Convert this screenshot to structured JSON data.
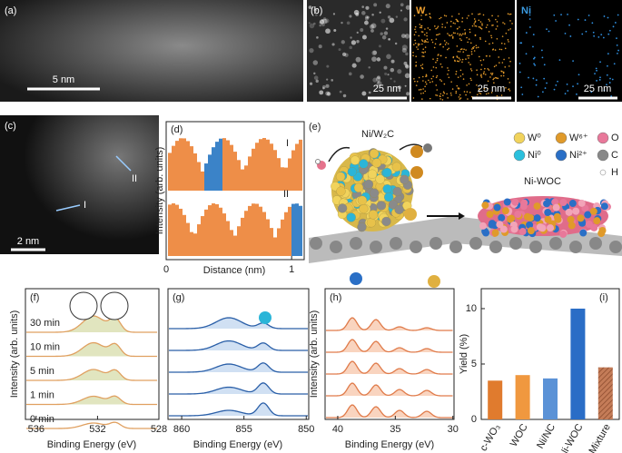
{
  "panels": {
    "a": {
      "label": "(a)",
      "scale_bar": "5 nm"
    },
    "b": {
      "label": "(b)",
      "maps": [
        "W",
        "Ni"
      ],
      "scale_bars": [
        "25 nm",
        "25 nm",
        "25 nm"
      ]
    },
    "c": {
      "label": "(c)",
      "scale_bar": "2 nm",
      "markers": [
        "I",
        "II"
      ]
    },
    "d": {
      "label": "(d)",
      "ylabel": "Intensity (arb. units)",
      "xlabel": "Distance (nm)",
      "xlim": [
        0,
        1.1
      ],
      "xticks": [
        0,
        1
      ],
      "traces": [
        "I",
        "II"
      ]
    },
    "e": {
      "label": "(e)",
      "left": "Ni/W₂C",
      "right": "Ni-WOC",
      "legend": [
        "W⁰",
        "W⁶⁺",
        "O",
        "Ni⁰",
        "Ni²⁺",
        "C",
        "H"
      ]
    },
    "f": {
      "label": "(f)",
      "ylabel": "Intensity (arb. units)",
      "xlabel": "Binding Energy (eV)",
      "xlim": [
        536.7,
        528
      ],
      "xticks": [
        536,
        532,
        528
      ],
      "traces": [
        "30 min",
        "10 min",
        "5 min",
        "1 min",
        "0 min"
      ]
    },
    "g": {
      "label": "(g)",
      "xlabel": "Binding Energy (eV)",
      "xlim": [
        861.1,
        849.8
      ],
      "xticks": [
        860,
        855,
        850
      ]
    },
    "h": {
      "label": "(h)",
      "ylabel": "Intensity (arb. units)",
      "xlabel": "Binding Energy (eV)",
      "xlim": [
        41.1,
        29.9
      ],
      "xticks": [
        40,
        35,
        30
      ]
    }
  },
  "chart_data": {
    "type": "bar",
    "label": "(i)",
    "ylabel": "Yield (%)",
    "categories": [
      "c-WO₃",
      "WOC",
      "Ni/NC",
      "Ni-WOC",
      "Mixture"
    ],
    "values": [
      3.5,
      4.0,
      3.7,
      10.0,
      4.7
    ],
    "colors": [
      "#e07b2e",
      "#f0983f",
      "#5b92d6",
      "#2a6dc6",
      "#c47c58"
    ],
    "hatch": [
      false,
      false,
      false,
      false,
      true
    ],
    "ylim": [
      0,
      11.8
    ],
    "yticks": [
      0,
      5,
      10
    ]
  }
}
